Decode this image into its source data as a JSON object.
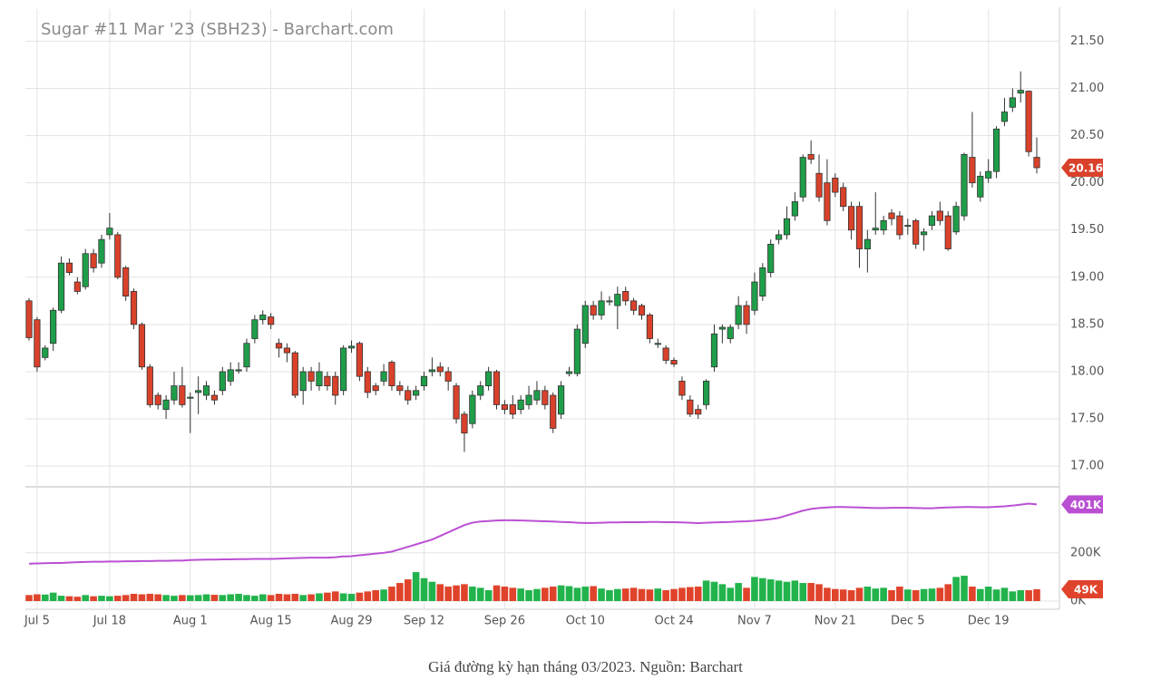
{
  "chart_data": {
    "type": "candlestick",
    "title": "Sugar #11 Mar '23 (SBH23) - Barchart.com",
    "categories": [
      null,
      "Jul 5",
      null,
      null,
      null,
      null,
      null,
      null,
      null,
      null,
      "Jul 18",
      null,
      null,
      null,
      null,
      null,
      null,
      null,
      null,
      null,
      "Aug 1",
      null,
      null,
      null,
      null,
      null,
      null,
      null,
      null,
      null,
      "Aug 15",
      null,
      null,
      null,
      null,
      null,
      null,
      null,
      null,
      null,
      "Aug 29",
      null,
      null,
      null,
      null,
      null,
      null,
      null,
      null,
      "Sep 12",
      null,
      null,
      null,
      null,
      null,
      null,
      null,
      null,
      null,
      "Sep 26",
      null,
      null,
      null,
      null,
      null,
      null,
      null,
      null,
      null,
      "Oct 10",
      null,
      null,
      null,
      null,
      null,
      null,
      null,
      null,
      null,
      null,
      "Oct 24",
      null,
      null,
      null,
      null,
      null,
      null,
      null,
      null,
      null,
      "Nov 7",
      null,
      null,
      null,
      null,
      null,
      null,
      null,
      null,
      null,
      "Nov 21",
      null,
      null,
      null,
      null,
      null,
      null,
      null,
      null,
      "Dec 5",
      null,
      null,
      null,
      null,
      null,
      null,
      null,
      null,
      null,
      "Dec 19",
      null,
      null,
      null,
      null,
      null,
      null
    ],
    "open": [
      18.75,
      18.55,
      18.15,
      18.3,
      18.65,
      19.15,
      18.95,
      18.9,
      19.25,
      19.15,
      19.45,
      19.45,
      19.1,
      18.85,
      18.5,
      18.05,
      17.75,
      17.6,
      17.7,
      17.85,
      17.72,
      17.78,
      17.75,
      17.75,
      17.8,
      17.9,
      18.01,
      18.05,
      18.35,
      18.55,
      18.58,
      18.3,
      18.25,
      18.2,
      17.8,
      18.0,
      17.85,
      17.95,
      17.95,
      17.8,
      18.25,
      18.3,
      18.0,
      17.85,
      17.9,
      18.1,
      17.85,
      17.8,
      17.75,
      17.85,
      18.0,
      18.05,
      18.0,
      17.85,
      17.55,
      17.45,
      17.75,
      17.85,
      18.0,
      17.65,
      17.65,
      17.6,
      17.65,
      17.7,
      17.8,
      17.75,
      17.55,
      17.98,
      17.98,
      18.3,
      18.7,
      18.6,
      18.74,
      18.7,
      18.85,
      18.75,
      18.7,
      18.6,
      18.29,
      18.25,
      18.12,
      17.9,
      17.7,
      17.6,
      17.65,
      18.05,
      18.45,
      18.35,
      18.5,
      18.7,
      18.65,
      18.8,
      19.05,
      19.4,
      19.45,
      19.65,
      19.85,
      20.3,
      20.1,
      20.0,
      20.05,
      19.95,
      19.75,
      19.75,
      19.3,
      19.5,
      19.5,
      19.68,
      19.65,
      19.54,
      19.6,
      19.45,
      19.55,
      19.7,
      19.65,
      19.48,
      19.65,
      20.27,
      19.85,
      20.05,
      20.12,
      20.65,
      20.8,
      20.95,
      20.97,
      20.27
    ],
    "high": [
      18.78,
      18.58,
      18.28,
      18.68,
      19.22,
      19.2,
      19.0,
      19.3,
      19.3,
      19.45,
      19.68,
      19.48,
      19.12,
      18.88,
      18.52,
      18.08,
      17.78,
      17.75,
      18.0,
      18.05,
      17.78,
      17.95,
      17.9,
      17.8,
      18.05,
      18.1,
      18.1,
      18.35,
      18.6,
      18.65,
      18.62,
      18.35,
      18.3,
      18.22,
      18.05,
      18.05,
      18.1,
      18.0,
      18.0,
      18.28,
      18.33,
      18.32,
      18.05,
      17.88,
      18.08,
      18.12,
      17.9,
      17.85,
      17.85,
      18.0,
      18.15,
      18.1,
      18.05,
      17.88,
      17.58,
      17.8,
      17.9,
      18.05,
      18.02,
      17.7,
      17.75,
      17.75,
      17.85,
      17.9,
      17.85,
      17.78,
      17.9,
      18.05,
      18.5,
      18.75,
      18.75,
      18.85,
      18.8,
      18.9,
      18.9,
      18.78,
      18.72,
      18.62,
      18.35,
      18.28,
      18.15,
      17.95,
      17.75,
      17.65,
      17.92,
      18.5,
      18.5,
      18.5,
      18.8,
      18.75,
      19.05,
      19.15,
      19.4,
      19.5,
      19.75,
      19.9,
      20.3,
      20.45,
      20.3,
      20.25,
      20.1,
      20.0,
      19.8,
      19.8,
      19.5,
      19.9,
      19.65,
      19.72,
      19.7,
      19.62,
      19.62,
      19.52,
      19.7,
      19.8,
      19.7,
      19.8,
      20.32,
      20.75,
      20.12,
      20.25,
      20.6,
      20.9,
      21.0,
      21.18,
      20.98,
      20.48
    ],
    "low": [
      18.33,
      18.0,
      18.12,
      18.22,
      18.62,
      19.02,
      18.82,
      18.87,
      19.05,
      19.1,
      19.4,
      18.98,
      18.75,
      18.45,
      18.02,
      17.62,
      17.6,
      17.5,
      17.65,
      17.62,
      17.35,
      17.55,
      17.7,
      17.65,
      17.75,
      17.85,
      17.98,
      18.0,
      18.3,
      18.5,
      18.45,
      18.15,
      18.1,
      17.72,
      17.65,
      17.8,
      17.8,
      17.8,
      17.65,
      17.75,
      18.2,
      17.9,
      17.72,
      17.75,
      17.85,
      17.8,
      17.75,
      17.65,
      17.7,
      17.8,
      17.95,
      17.95,
      17.8,
      17.45,
      17.15,
      17.4,
      17.7,
      17.8,
      17.6,
      17.55,
      17.5,
      17.55,
      17.6,
      17.65,
      17.6,
      17.35,
      17.5,
      17.95,
      17.95,
      18.25,
      18.55,
      18.55,
      18.7,
      18.45,
      18.7,
      18.6,
      18.55,
      18.3,
      18.25,
      18.08,
      18.05,
      17.7,
      17.52,
      17.5,
      17.6,
      18.0,
      18.3,
      18.3,
      18.45,
      18.4,
      18.6,
      18.75,
      19.0,
      19.35,
      19.4,
      19.6,
      19.8,
      20.2,
      19.8,
      19.55,
      19.85,
      19.7,
      19.4,
      19.1,
      19.05,
      19.45,
      19.45,
      19.55,
      19.4,
      19.45,
      19.3,
      19.28,
      19.5,
      19.55,
      19.28,
      19.45,
      19.6,
      19.95,
      19.8,
      20.0,
      20.05,
      20.6,
      20.75,
      20.85,
      20.28,
      20.1
    ],
    "close": [
      18.36,
      18.05,
      18.25,
      18.65,
      19.15,
      19.05,
      18.85,
      19.25,
      19.1,
      19.4,
      19.52,
      19.0,
      18.8,
      18.5,
      18.05,
      17.65,
      17.65,
      17.7,
      17.85,
      17.65,
      17.73,
      17.8,
      17.85,
      17.7,
      18.0,
      18.02,
      18.02,
      18.3,
      18.55,
      18.6,
      18.5,
      18.25,
      18.2,
      17.75,
      18.0,
      17.9,
      18.0,
      17.85,
      17.75,
      18.25,
      18.27,
      17.95,
      17.78,
      17.8,
      18.0,
      17.85,
      17.8,
      17.7,
      17.8,
      17.95,
      18.02,
      18.0,
      17.9,
      17.5,
      17.35,
      17.75,
      17.85,
      18.0,
      17.65,
      17.6,
      17.55,
      17.7,
      17.75,
      17.8,
      17.65,
      17.4,
      17.85,
      18.0,
      18.45,
      18.7,
      18.6,
      18.75,
      18.75,
      18.82,
      18.75,
      18.65,
      18.6,
      18.35,
      18.3,
      18.12,
      18.08,
      17.75,
      17.55,
      17.55,
      17.9,
      18.4,
      18.47,
      18.47,
      18.7,
      18.5,
      18.95,
      19.1,
      19.35,
      19.45,
      19.62,
      19.8,
      20.27,
      20.25,
      19.85,
      19.6,
      19.9,
      19.75,
      19.5,
      19.3,
      19.4,
      19.52,
      19.6,
      19.62,
      19.45,
      19.55,
      19.35,
      19.48,
      19.65,
      19.6,
      19.3,
      19.75,
      20.3,
      20.0,
      20.07,
      20.12,
      20.57,
      20.75,
      20.9,
      20.98,
      20.33,
      20.16
    ],
    "ylim": [
      16.79,
      21.84
    ],
    "yticks": [
      {
        "value": 17,
        "label": "17.00"
      },
      {
        "value": 17.5,
        "label": "17.50"
      },
      {
        "value": 18,
        "label": "18.00"
      },
      {
        "value": 18.5,
        "label": "18.50"
      },
      {
        "value": 19,
        "label": "19.00"
      },
      {
        "value": 19.5,
        "label": "19.50"
      },
      {
        "value": 20,
        "label": "20.00"
      },
      {
        "value": 20.5,
        "label": "20.50"
      },
      {
        "value": 21,
        "label": "21.00"
      },
      {
        "value": 21.5,
        "label": "21.50"
      }
    ],
    "up_color": "#1f9e4a",
    "down_color": "#d9412b",
    "volume": {
      "values": [
        25000,
        28000,
        27000,
        35000,
        22000,
        20000,
        18000,
        25000,
        20000,
        22000,
        20000,
        22000,
        25000,
        30000,
        28000,
        30000,
        28000,
        25000,
        22000,
        25000,
        24000,
        25000,
        28000,
        26000,
        25000,
        28000,
        30000,
        25000,
        22000,
        28000,
        25000,
        30000,
        28000,
        30000,
        25000,
        28000,
        32000,
        35000,
        40000,
        32000,
        30000,
        35000,
        40000,
        45000,
        48000,
        60000,
        75000,
        90000,
        120000,
        95000,
        80000,
        70000,
        60000,
        65000,
        70000,
        60000,
        55000,
        45000,
        65000,
        60000,
        55000,
        52000,
        45000,
        50000,
        55000,
        60000,
        65000,
        62000,
        55000,
        60000,
        62000,
        52000,
        45000,
        50000,
        52000,
        55000,
        50000,
        48000,
        52000,
        45000,
        50000,
        55000,
        58000,
        60000,
        85000,
        80000,
        70000,
        55000,
        75000,
        55000,
        100000,
        95000,
        90000,
        85000,
        80000,
        85000,
        75000,
        75000,
        70000,
        55000,
        50000,
        48000,
        45000,
        55000,
        60000,
        52000,
        55000,
        45000,
        60000,
        48000,
        45000,
        50000,
        52000,
        55000,
        70000,
        100000,
        105000,
        60000,
        50000,
        60000,
        48000,
        55000,
        40000,
        45000,
        45000,
        49000
      ],
      "last_label": "49K",
      "up_color": "#22b34c",
      "down_color": "#e0432b"
    },
    "open_interest": {
      "values": [
        155000,
        156000,
        157000,
        158000,
        158000,
        160000,
        161000,
        162000,
        163000,
        163000,
        164000,
        164000,
        165000,
        165000,
        166000,
        166000,
        167000,
        167000,
        168000,
        168000,
        170000,
        171000,
        172000,
        172000,
        173000,
        173000,
        174000,
        174000,
        175000,
        175000,
        175000,
        176000,
        177000,
        178000,
        179000,
        180000,
        180000,
        180000,
        182000,
        185000,
        186000,
        190000,
        193000,
        197000,
        200000,
        205000,
        215000,
        225000,
        235000,
        245000,
        255000,
        270000,
        285000,
        300000,
        315000,
        325000,
        330000,
        332000,
        334000,
        335000,
        335000,
        334000,
        333000,
        332000,
        331000,
        330000,
        328000,
        327000,
        325000,
        324000,
        324000,
        325000,
        326000,
        326000,
        327000,
        327000,
        327000,
        328000,
        328000,
        327000,
        327000,
        326000,
        325000,
        323000,
        325000,
        326000,
        327000,
        328000,
        330000,
        331000,
        333000,
        336000,
        340000,
        345000,
        355000,
        365000,
        375000,
        382000,
        386000,
        388000,
        390000,
        390000,
        389000,
        388000,
        387000,
        386000,
        386000,
        387000,
        387000,
        387000,
        386000,
        385000,
        385000,
        387000,
        388000,
        389000,
        390000,
        390000,
        389000,
        389000,
        391000,
        393000,
        396000,
        400000,
        404000,
        401000
      ],
      "last_label": "401K",
      "color": "#bb4fd3"
    },
    "vlim": [
      0,
      470000
    ],
    "vticks": [
      {
        "value": 0,
        "label": "0K"
      },
      {
        "value": 200000,
        "label": "200K"
      }
    ],
    "grid": true
  },
  "caption": "Giá đường kỳ hạn tháng 03/2023. Nguồn: Barchart"
}
